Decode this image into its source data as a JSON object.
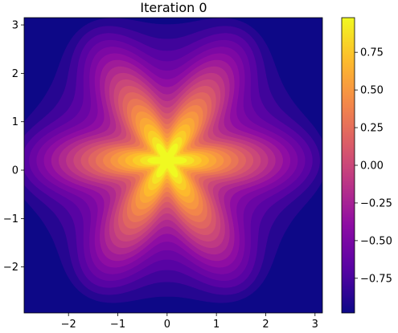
{
  "chart_data": {
    "type": "heatmap",
    "title": "Iteration 0",
    "xlabel": "",
    "ylabel": "",
    "xlim": [
      -2.9,
      3.15
    ],
    "ylim": [
      -2.95,
      3.15
    ],
    "x_ticks": [
      -2,
      -1,
      0,
      1,
      2,
      3
    ],
    "y_ticks": [
      -2,
      -1,
      0,
      1,
      2,
      3
    ],
    "x_tick_labels": [
      "−2",
      "−1",
      "0",
      "1",
      "2",
      "3"
    ],
    "y_tick_labels": [
      "−2",
      "−1",
      "0",
      "1",
      "2",
      "3"
    ],
    "colormap": "plasma",
    "contour_levels": 20,
    "colorbar": {
      "range": [
        -0.98,
        0.98
      ],
      "ticks": [
        -0.75,
        -0.5,
        -0.25,
        0.0,
        0.25,
        0.5,
        0.75
      ],
      "tick_labels": [
        "−0.75",
        "−0.50",
        "−0.25",
        "0.00",
        "0.25",
        "0.50",
        "0.75"
      ]
    },
    "field": {
      "description": "six-petal flower pattern",
      "petals": 6,
      "petal_angles_deg": [
        0,
        60,
        120,
        180,
        240,
        300
      ],
      "center": [
        0.0,
        0.2
      ],
      "value_range": [
        -0.98,
        0.98
      ]
    },
    "grid": false
  }
}
